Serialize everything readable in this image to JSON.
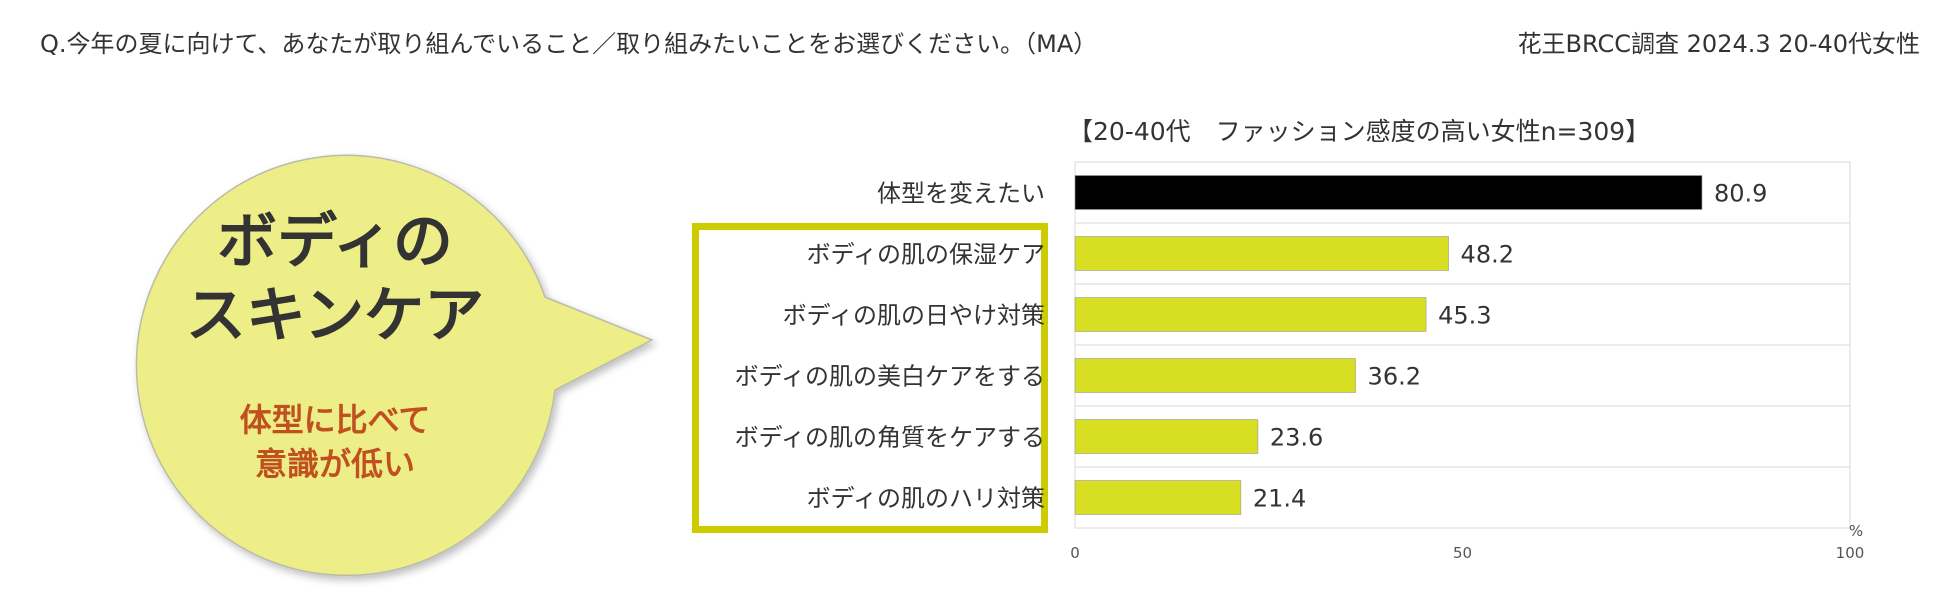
{
  "header": {
    "question": "Q.今年の夏に向けて、あなたが取り組んでいること／取り組みたいことをお選びください。（MA）",
    "source": "花王BRCC調査 2024.3 20-40代女性"
  },
  "callout": {
    "title_lines": [
      "ボディの",
      "スキンケア"
    ],
    "subtitle_lines": [
      "体型に比べて",
      "意識が低い"
    ],
    "fill_color": "#eeee88",
    "subtitle_color": "#c0501f"
  },
  "chart_data": {
    "type": "bar",
    "orientation": "horizontal",
    "title": "【20-40代　ファッション感度の高い女性n=309】",
    "categories": [
      "体型を変えたい",
      "ボディの肌の保湿ケア",
      "ボディの肌の日やけ対策",
      "ボディの肌の美白ケアをする",
      "ボディの肌の角質をケアする",
      "ボディの肌のハリ対策"
    ],
    "values": [
      80.9,
      48.2,
      45.3,
      36.2,
      23.6,
      21.4
    ],
    "value_labels": [
      "80.9",
      "48.2",
      "45.3",
      "36.2",
      "23.6",
      "21.4"
    ],
    "bar_colors": [
      "#000000",
      "#d8de22",
      "#d8de22",
      "#d8de22",
      "#d8de22",
      "#d8de22"
    ],
    "xlim": [
      0,
      100
    ],
    "ticks": [
      "0",
      "50",
      "100"
    ],
    "unit": "%",
    "grid": true,
    "highlight_color": "#cccc00"
  }
}
